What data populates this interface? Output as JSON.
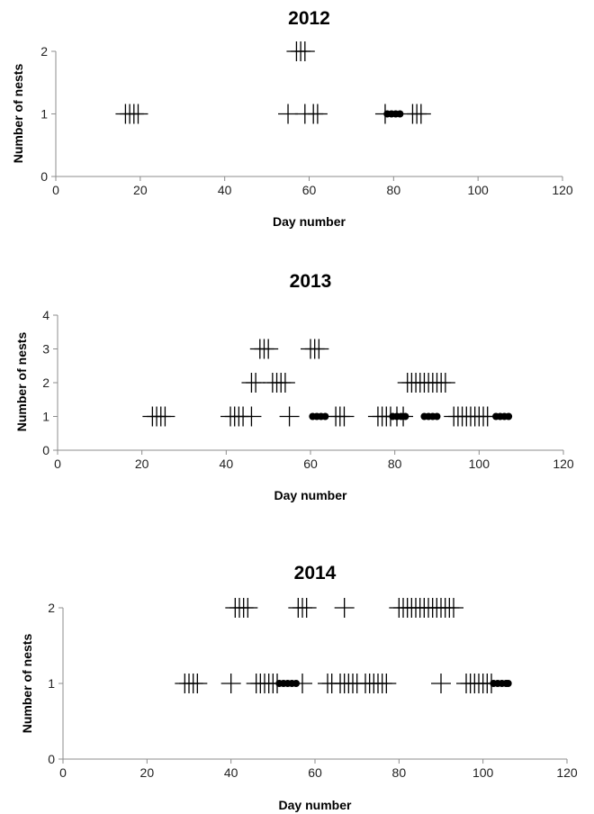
{
  "chart_data": [
    {
      "type": "scatter",
      "title": "2012",
      "xlabel": "Day number",
      "ylabel": "Number of nests",
      "xlim": [
        0,
        120
      ],
      "ylim": [
        0,
        2
      ],
      "x_ticks": [
        "0",
        "20",
        "40",
        "60",
        "80",
        "100",
        "120"
      ],
      "y_ticks": [
        "0",
        "1",
        "2"
      ],
      "grid": false,
      "series": [
        {
          "marker": "plus",
          "points": [
            [
              16.5,
              1
            ],
            [
              17.5,
              1
            ],
            [
              18.5,
              1
            ],
            [
              19.5,
              1
            ],
            [
              55,
              1
            ],
            [
              59,
              1
            ],
            [
              61,
              1
            ],
            [
              62,
              1
            ],
            [
              57,
              2
            ],
            [
              58,
              2
            ],
            [
              59,
              2
            ],
            [
              78,
              1
            ],
            [
              84.5,
              1
            ],
            [
              85.5,
              1
            ],
            [
              86.5,
              1
            ]
          ]
        },
        {
          "marker": "dot",
          "points": [
            [
              78.5,
              1
            ],
            [
              79.5,
              1
            ],
            [
              80.5,
              1
            ],
            [
              81.5,
              1
            ]
          ]
        }
      ]
    },
    {
      "type": "scatter",
      "title": "2013",
      "xlabel": "Day number",
      "ylabel": "Number of nests",
      "xlim": [
        0,
        120
      ],
      "ylim": [
        0,
        4
      ],
      "x_ticks": [
        "0",
        "20",
        "40",
        "60",
        "80",
        "100",
        "120"
      ],
      "y_ticks": [
        "0",
        "1",
        "2",
        "3",
        "4"
      ],
      "grid": false,
      "series": [
        {
          "marker": "plus",
          "points": [
            [
              22.5,
              1
            ],
            [
              23.5,
              1
            ],
            [
              24.5,
              1
            ],
            [
              25.5,
              1
            ],
            [
              41,
              1
            ],
            [
              42,
              1
            ],
            [
              43,
              1
            ],
            [
              44,
              1
            ],
            [
              46,
              1
            ],
            [
              55,
              1
            ],
            [
              66,
              1
            ],
            [
              67,
              1
            ],
            [
              68,
              1
            ],
            [
              76,
              1
            ],
            [
              77,
              1
            ],
            [
              78,
              1
            ],
            [
              79,
              1
            ],
            [
              80.5,
              1
            ],
            [
              82,
              1
            ],
            [
              94,
              1
            ],
            [
              95,
              1
            ],
            [
              96,
              1
            ],
            [
              97,
              1
            ],
            [
              98,
              1
            ],
            [
              99,
              1
            ],
            [
              100,
              1
            ],
            [
              101,
              1
            ],
            [
              102,
              1
            ],
            [
              46,
              2
            ],
            [
              47,
              2
            ],
            [
              51,
              2
            ],
            [
              52,
              2
            ],
            [
              53,
              2
            ],
            [
              54,
              2
            ],
            [
              83,
              2
            ],
            [
              84,
              2
            ],
            [
              85,
              2
            ],
            [
              86,
              2
            ],
            [
              87,
              2
            ],
            [
              88,
              2
            ],
            [
              89,
              2
            ],
            [
              90,
              2
            ],
            [
              91,
              2
            ],
            [
              92,
              2
            ],
            [
              48,
              3
            ],
            [
              49,
              3
            ],
            [
              50,
              3
            ],
            [
              60,
              3
            ],
            [
              61,
              3
            ],
            [
              62,
              3
            ]
          ]
        },
        {
          "marker": "dot",
          "points": [
            [
              60.5,
              1
            ],
            [
              61.5,
              1
            ],
            [
              62.5,
              1
            ],
            [
              63.5,
              1
            ],
            [
              79.5,
              1
            ],
            [
              80.5,
              1
            ],
            [
              81.5,
              1
            ],
            [
              82.5,
              1
            ],
            [
              87,
              1
            ],
            [
              88,
              1
            ],
            [
              89,
              1
            ],
            [
              90,
              1
            ],
            [
              104,
              1
            ],
            [
              105,
              1
            ],
            [
              106,
              1
            ],
            [
              107,
              1
            ]
          ]
        }
      ]
    },
    {
      "type": "scatter",
      "title": "2014",
      "xlabel": "Day number",
      "ylabel": "Number of nests",
      "xlim": [
        0,
        120
      ],
      "ylim": [
        0,
        2
      ],
      "x_ticks": [
        "0",
        "20",
        "40",
        "60",
        "80",
        "100",
        "120"
      ],
      "y_ticks": [
        "0",
        "1",
        "2"
      ],
      "grid": false,
      "series": [
        {
          "marker": "plus",
          "points": [
            [
              29,
              1
            ],
            [
              30,
              1
            ],
            [
              31,
              1
            ],
            [
              32,
              1
            ],
            [
              40,
              1
            ],
            [
              46,
              1
            ],
            [
              47,
              1
            ],
            [
              48,
              1
            ],
            [
              49,
              1
            ],
            [
              50,
              1
            ],
            [
              51,
              1
            ],
            [
              57,
              1
            ],
            [
              63,
              1
            ],
            [
              64,
              1
            ],
            [
              66,
              1
            ],
            [
              67,
              1
            ],
            [
              68,
              1
            ],
            [
              69,
              1
            ],
            [
              70,
              1
            ],
            [
              72,
              1
            ],
            [
              73,
              1
            ],
            [
              74,
              1
            ],
            [
              75,
              1
            ],
            [
              76,
              1
            ],
            [
              77,
              1
            ],
            [
              90,
              1
            ],
            [
              96,
              1
            ],
            [
              97,
              1
            ],
            [
              98,
              1
            ],
            [
              99,
              1
            ],
            [
              100,
              1
            ],
            [
              101,
              1
            ],
            [
              102,
              1
            ],
            [
              41,
              2
            ],
            [
              42,
              2
            ],
            [
              43,
              2
            ],
            [
              44,
              2
            ],
            [
              56,
              2
            ],
            [
              57,
              2
            ],
            [
              58,
              2
            ],
            [
              67,
              2
            ],
            [
              80,
              2
            ],
            [
              81,
              2
            ],
            [
              82,
              2
            ],
            [
              83,
              2
            ],
            [
              84,
              2
            ],
            [
              85,
              2
            ],
            [
              86,
              2
            ],
            [
              87,
              2
            ],
            [
              88,
              2
            ],
            [
              89,
              2
            ],
            [
              90,
              2
            ],
            [
              91,
              2
            ],
            [
              92,
              2
            ],
            [
              93,
              2
            ]
          ]
        },
        {
          "marker": "dot",
          "points": [
            [
              51.5,
              1
            ],
            [
              52.5,
              1
            ],
            [
              53.5,
              1
            ],
            [
              54.5,
              1
            ],
            [
              55.5,
              1
            ],
            [
              102.5,
              1
            ],
            [
              103.5,
              1
            ],
            [
              104.5,
              1
            ],
            [
              105.5,
              1
            ],
            [
              106,
              1
            ]
          ]
        }
      ]
    }
  ]
}
